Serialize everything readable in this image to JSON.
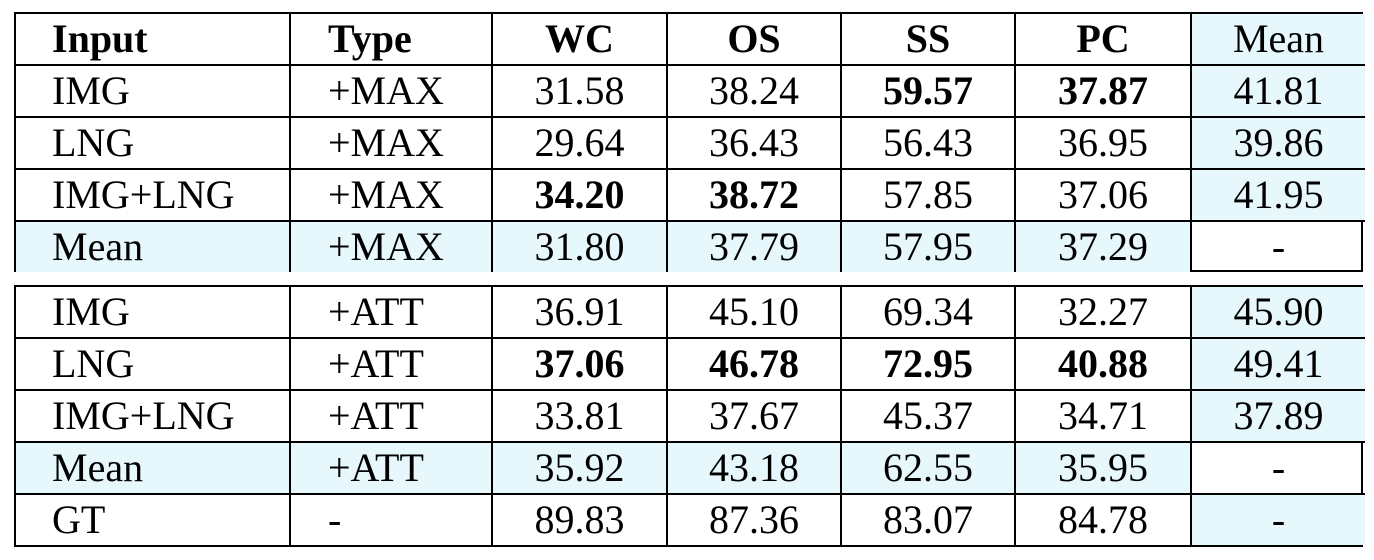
{
  "header": [
    "Input",
    "Type",
    "WC",
    "OS",
    "SS",
    "PC",
    "Mean"
  ],
  "max_rows": [
    {
      "input": "IMG",
      "type": "+MAX",
      "wc": "31.58",
      "os": "38.24",
      "ss": "59.57",
      "pc": "37.87",
      "mean": "41.81"
    },
    {
      "input": "LNG",
      "type": "+MAX",
      "wc": "29.64",
      "os": "36.43",
      "ss": "56.43",
      "pc": "36.95",
      "mean": "39.86"
    },
    {
      "input": "IMG+LNG",
      "type": "+MAX",
      "wc": "34.20",
      "os": "38.72",
      "ss": "57.85",
      "pc": "37.06",
      "mean": "41.95"
    },
    {
      "input": "Mean",
      "type": "+MAX",
      "wc": "31.80",
      "os": "37.79",
      "ss": "57.95",
      "pc": "37.29",
      "mean": "-"
    }
  ],
  "att_rows": [
    {
      "input": "IMG",
      "type": "+ATT",
      "wc": "36.91",
      "os": "45.10",
      "ss": "69.34",
      "pc": "32.27",
      "mean": "45.90"
    },
    {
      "input": "LNG",
      "type": "+ATT",
      "wc": "37.06",
      "os": "46.78",
      "ss": "72.95",
      "pc": "40.88",
      "mean": "49.41"
    },
    {
      "input": "IMG+LNG",
      "type": "+ATT",
      "wc": "33.81",
      "os": "37.67",
      "ss": "45.37",
      "pc": "34.71",
      "mean": "37.89"
    },
    {
      "input": "Mean",
      "type": "+ATT",
      "wc": "35.92",
      "os": "43.18",
      "ss": "62.55",
      "pc": "35.95",
      "mean": "-"
    },
    {
      "input": "GT",
      "type": "-",
      "wc": "89.83",
      "os": "87.36",
      "ss": "83.07",
      "pc": "84.78",
      "mean": "-"
    }
  ],
  "highlight_color": "#e6f8fc"
}
